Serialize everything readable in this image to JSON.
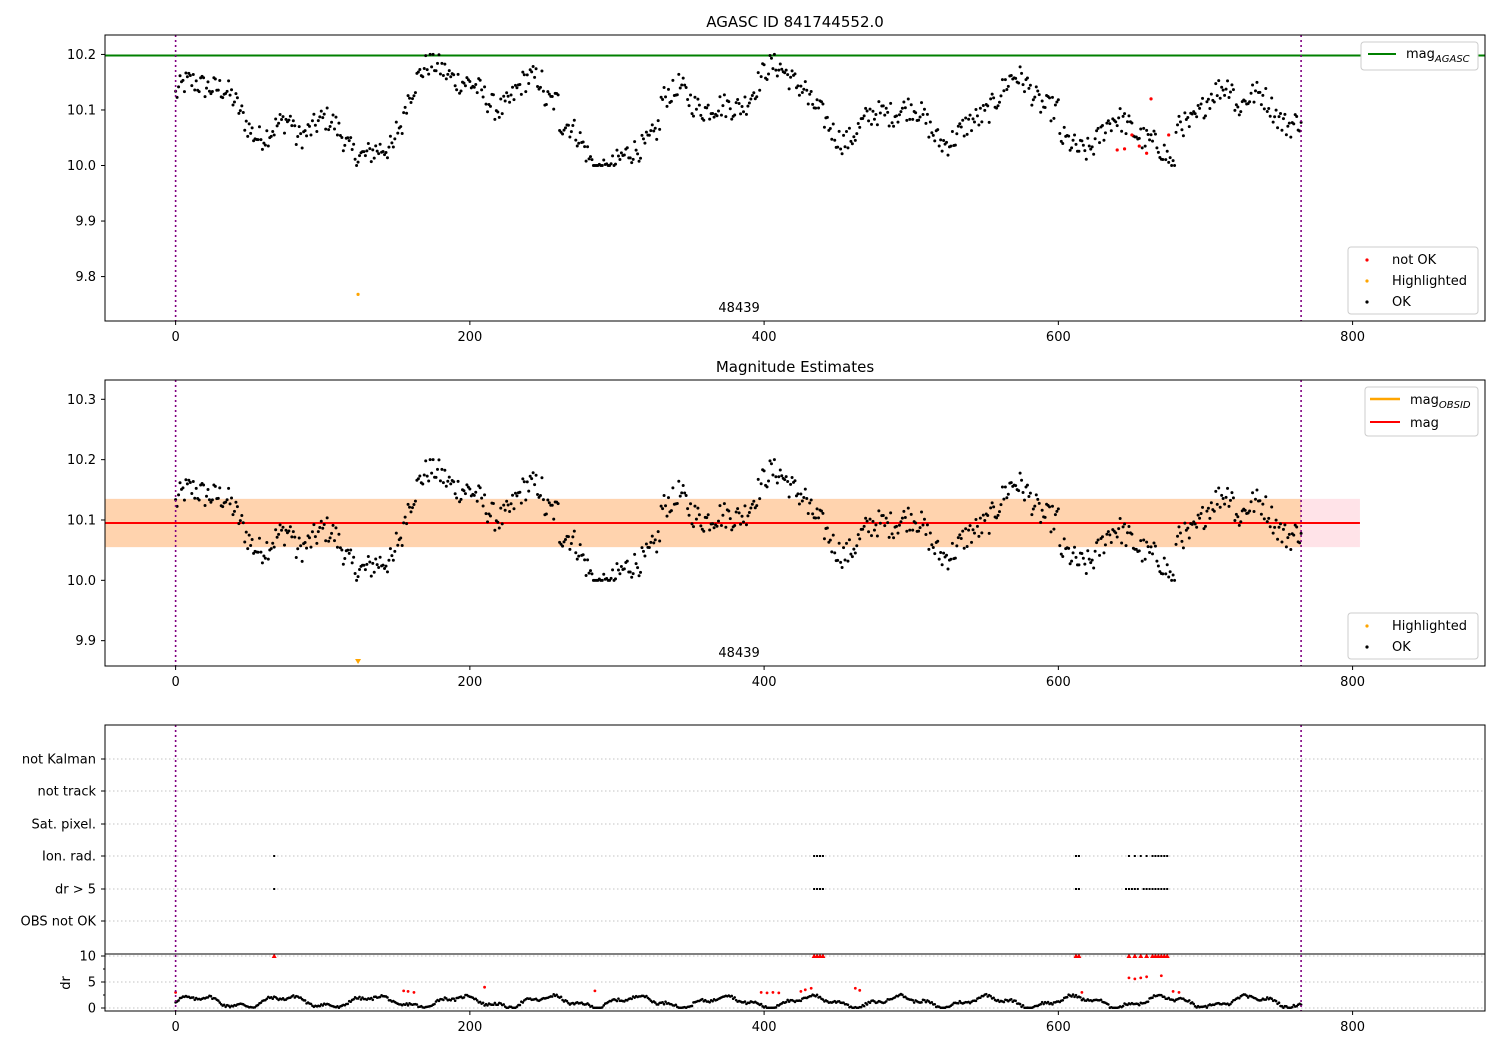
{
  "chart_data": [
    {
      "type": "scatter",
      "title": "AGASC ID 841744552.0",
      "xlabel": "",
      "ylabel": "",
      "xlim": [
        -48,
        890
      ],
      "ylim": [
        9.72,
        10.235
      ],
      "xticks": [
        "0",
        "200",
        "400",
        "600",
        "800"
      ],
      "yticks": [
        "9.8",
        "9.9",
        "10.0",
        "10.1",
        "10.2"
      ],
      "obsid_label": "48439",
      "obsid_label_x": 383,
      "obs_boundaries": [
        0,
        765
      ],
      "reference_line": {
        "name": "mag_AGASC",
        "value": 10.198,
        "color": "#008000"
      },
      "series": [
        {
          "name": "not OK",
          "color": "#ff0000",
          "points": [
            [
              645,
              10.03
            ],
            [
              650,
              10.055
            ],
            [
              655,
              10.035
            ],
            [
              660,
              10.022
            ],
            [
              663,
              10.12
            ],
            [
              675,
              10.055
            ],
            [
              640,
              10.028
            ]
          ]
        },
        {
          "name": "Highlighted",
          "color": "#ffa500",
          "points": [
            [
              124,
              9.768
            ]
          ]
        },
        {
          "name": "OK",
          "color": "#000000",
          "description": "~765 measurements fluctuating between 10.0 and 10.2"
        }
      ],
      "legend": {
        "upper": [
          "mag_AGASC"
        ],
        "lower": [
          "not OK",
          "Highlighted",
          "OK"
        ],
        "upper_loc": "upper right",
        "lower_loc": "lower right"
      }
    },
    {
      "type": "scatter",
      "title": "Magnitude Estimates",
      "xlabel": "",
      "ylabel": "",
      "xlim": [
        -48,
        890
      ],
      "ylim": [
        9.858,
        10.332
      ],
      "xticks": [
        "0",
        "200",
        "400",
        "600",
        "800"
      ],
      "yticks": [
        "9.9",
        "10.0",
        "10.1",
        "10.2",
        "10.3"
      ],
      "obsid_label": "48439",
      "obsid_label_x": 383,
      "obs_boundaries": [
        0,
        765
      ],
      "mag": {
        "name": "mag",
        "value": 10.095,
        "band": [
          10.055,
          10.135
        ],
        "color": "#ff0000"
      },
      "mag_obsid": {
        "name": "mag_OBSID",
        "value": 10.095,
        "band": [
          10.055,
          10.135
        ],
        "color": "#ffa500"
      },
      "series": [
        {
          "name": "Highlighted",
          "color": "#ffa500",
          "marker": "down-triangle at lower edge",
          "points": [
            [
              124,
              9.86
            ]
          ]
        },
        {
          "name": "OK",
          "color": "#000000",
          "description": "same ~765 measurements as top panel"
        }
      ],
      "legend": {
        "upper": [
          "mag_OBSID",
          "mag"
        ],
        "lower": [
          "Highlighted",
          "OK"
        ],
        "upper_loc": "upper right",
        "lower_loc": "lower right"
      }
    },
    {
      "type": "scatter",
      "title": "",
      "xlim": [
        -48,
        890
      ],
      "flag_rows": [
        "not Kalman",
        "not track",
        "Sat. pixel.",
        "Ion. rad.",
        "dr > 5",
        "OBS not OK"
      ],
      "flag_points": {
        "Ion. rad.": [
          [
            67,
            0
          ],
          [
            434,
            0
          ],
          [
            436,
            0
          ],
          [
            438,
            0
          ],
          [
            440,
            0
          ],
          [
            612,
            0
          ],
          [
            614,
            0
          ],
          [
            648,
            0
          ],
          [
            652,
            0
          ],
          [
            656,
            0
          ],
          [
            660,
            0
          ],
          [
            664,
            0
          ],
          [
            666,
            0
          ],
          [
            668,
            0
          ],
          [
            670,
            0
          ],
          [
            672,
            0
          ],
          [
            674,
            0
          ]
        ],
        "dr > 5": [
          [
            67,
            0
          ],
          [
            434,
            0
          ],
          [
            436,
            0
          ],
          [
            438,
            0
          ],
          [
            440,
            0
          ],
          [
            612,
            0
          ],
          [
            614,
            0
          ],
          [
            646,
            0
          ],
          [
            648,
            0
          ],
          [
            650,
            0
          ],
          [
            652,
            0
          ],
          [
            654,
            0
          ],
          [
            658,
            0
          ],
          [
            660,
            0
          ],
          [
            662,
            0
          ],
          [
            664,
            0
          ],
          [
            666,
            0
          ],
          [
            668,
            0
          ],
          [
            670,
            0
          ],
          [
            672,
            0
          ],
          [
            674,
            0
          ]
        ]
      },
      "dr": {
        "ylabel": "dr",
        "yticks": [
          "0",
          "5",
          "10"
        ],
        "ylim": [
          -0.5,
          11
        ],
        "clip_value": 10,
        "red_points": [
          [
            0,
            3
          ],
          [
            67,
            10
          ],
          [
            155,
            3.3
          ],
          [
            158,
            3.2
          ],
          [
            162,
            3.0
          ],
          [
            210,
            4
          ],
          [
            285,
            3.3
          ],
          [
            398,
            3
          ],
          [
            402,
            2.9
          ],
          [
            406,
            3
          ],
          [
            410,
            2.9
          ],
          [
            425,
            3.2
          ],
          [
            428,
            3.5
          ],
          [
            432,
            3.8
          ],
          [
            434,
            10
          ],
          [
            436,
            10
          ],
          [
            438,
            10
          ],
          [
            440,
            10
          ],
          [
            462,
            3.8
          ],
          [
            465,
            3.4
          ],
          [
            612,
            10
          ],
          [
            614,
            10
          ],
          [
            616,
            3
          ],
          [
            648,
            5.8
          ],
          [
            652,
            5.6
          ],
          [
            656,
            5.8
          ],
          [
            660,
            6
          ],
          [
            648,
            10
          ],
          [
            652,
            10
          ],
          [
            656,
            10
          ],
          [
            660,
            10
          ],
          [
            664,
            10
          ],
          [
            666,
            10
          ],
          [
            668,
            10
          ],
          [
            670,
            10
          ],
          [
            672,
            10
          ],
          [
            674,
            10
          ],
          [
            670,
            6.2
          ],
          [
            678,
            3.2
          ],
          [
            682,
            3
          ]
        ],
        "black_description": "dr mostly between 0 and 2.5, oscillating"
      },
      "xticks": [
        "0",
        "200",
        "400",
        "600",
        "800"
      ],
      "obs_boundaries": [
        0,
        765
      ]
    }
  ]
}
